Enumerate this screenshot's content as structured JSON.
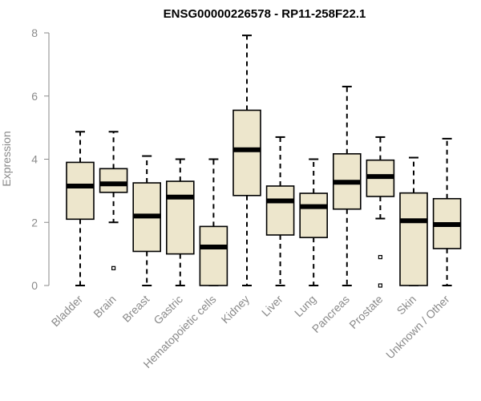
{
  "chart_data": {
    "type": "boxplot",
    "title": "ENSG00000226578 - RP11-258F22.1",
    "xlabel": "",
    "ylabel": "Expression",
    "ylim": [
      0,
      8
    ],
    "yticks": [
      0,
      2,
      4,
      6,
      8
    ],
    "box_color": "#ede6cc",
    "categories": [
      "Bladder",
      "Brain",
      "Breast",
      "Gastric",
      "Hematopoietic cells",
      "Kidney",
      "Liver",
      "Lung",
      "Pancreas",
      "Prostate",
      "Skin",
      "Unknown / Other"
    ],
    "boxes": [
      {
        "whisker_low": 0.0,
        "q1": 2.1,
        "median": 3.15,
        "q3": 3.9,
        "whisker_high": 4.87,
        "outliers": []
      },
      {
        "whisker_low": 2.0,
        "q1": 2.95,
        "median": 3.22,
        "q3": 3.7,
        "whisker_high": 4.87,
        "outliers": [
          0.55
        ]
      },
      {
        "whisker_low": 0.0,
        "q1": 1.08,
        "median": 2.2,
        "q3": 3.25,
        "whisker_high": 4.1,
        "outliers": []
      },
      {
        "whisker_low": 0.0,
        "q1": 1.0,
        "median": 2.8,
        "q3": 3.3,
        "whisker_high": 4.0,
        "outliers": []
      },
      {
        "whisker_low": 0.0,
        "q1": 0.0,
        "median": 1.22,
        "q3": 1.87,
        "whisker_high": 4.0,
        "outliers": []
      },
      {
        "whisker_low": 0.0,
        "q1": 2.85,
        "median": 4.3,
        "q3": 5.55,
        "whisker_high": 7.92,
        "outliers": []
      },
      {
        "whisker_low": 0.0,
        "q1": 1.6,
        "median": 2.68,
        "q3": 3.15,
        "whisker_high": 4.7,
        "outliers": []
      },
      {
        "whisker_low": 0.0,
        "q1": 1.52,
        "median": 2.5,
        "q3": 2.92,
        "whisker_high": 4.0,
        "outliers": []
      },
      {
        "whisker_low": 0.0,
        "q1": 2.42,
        "median": 3.27,
        "q3": 4.17,
        "whisker_high": 6.3,
        "outliers": []
      },
      {
        "whisker_low": 2.12,
        "q1": 2.82,
        "median": 3.45,
        "q3": 3.97,
        "whisker_high": 4.7,
        "outliers": [
          0.9,
          0.0
        ]
      },
      {
        "whisker_low": 0.0,
        "q1": 0.0,
        "median": 2.05,
        "q3": 2.93,
        "whisker_high": 4.05,
        "outliers": []
      },
      {
        "whisker_low": 0.0,
        "q1": 1.17,
        "median": 1.93,
        "q3": 2.75,
        "whisker_high": 4.65,
        "outliers": []
      }
    ]
  }
}
